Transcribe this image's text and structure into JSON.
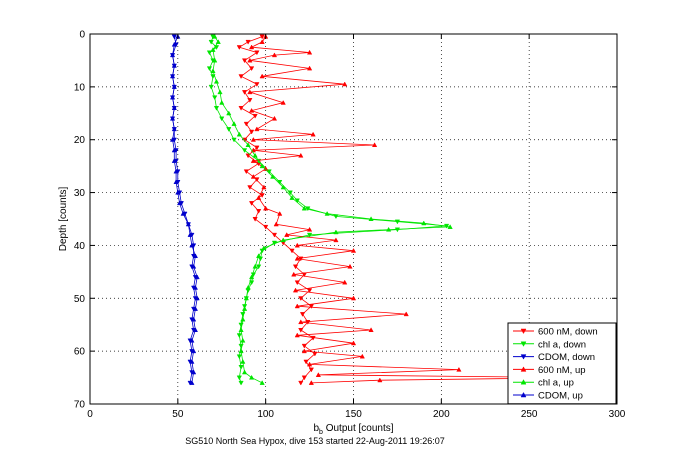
{
  "chart_data": {
    "type": "line",
    "title": "",
    "xlabel_prefix": "b",
    "xlabel_sub": "b",
    "xlabel_rest": " Output [counts]",
    "ylabel": "Depth [counts]",
    "caption": "SG510 North Sea Hypox, dive 153 started 22-Aug-2011 19:26:07",
    "xlim": [
      0,
      300
    ],
    "ylim": [
      0,
      70
    ],
    "y_reversed": true,
    "grid": "dotted",
    "legend_position": "bottom-right",
    "xticks": [
      "0",
      "50",
      "100",
      "150",
      "200",
      "250",
      "300"
    ],
    "yticks": [
      "0",
      "10",
      "20",
      "30",
      "40",
      "50",
      "60",
      "70"
    ],
    "series": [
      {
        "name": "600 nM, down",
        "color": "#ff0000",
        "marker": "triangle-down",
        "points": [
          [
            98,
            0.5
          ],
          [
            90,
            1.5
          ],
          [
            85,
            2.5
          ],
          [
            95,
            3.5
          ],
          [
            88,
            5
          ],
          [
            92,
            6.5
          ],
          [
            86,
            8
          ],
          [
            95,
            9.5
          ],
          [
            88,
            11
          ],
          [
            91,
            12.5
          ],
          [
            86,
            14
          ],
          [
            94,
            15.5
          ],
          [
            89,
            17
          ],
          [
            92,
            18.5
          ],
          [
            88,
            20
          ],
          [
            95,
            21.5
          ],
          [
            90,
            23
          ],
          [
            96,
            24.5
          ],
          [
            89,
            26
          ],
          [
            95,
            27.5
          ],
          [
            91,
            29
          ],
          [
            98,
            30.5
          ],
          [
            92,
            32
          ],
          [
            96,
            33.5
          ],
          [
            94,
            35
          ],
          [
            100,
            36.5
          ],
          [
            105,
            38
          ],
          [
            110,
            39.5
          ],
          [
            115,
            41
          ],
          [
            120,
            42.5
          ],
          [
            117,
            44
          ],
          [
            122,
            45.5
          ],
          [
            118,
            47
          ],
          [
            125,
            48.5
          ],
          [
            120,
            50
          ],
          [
            126,
            51.5
          ],
          [
            121,
            53
          ],
          [
            124,
            54.5
          ],
          [
            120,
            56
          ],
          [
            127,
            57.5
          ],
          [
            122,
            59
          ],
          [
            128,
            60.5
          ],
          [
            123,
            62
          ],
          [
            126,
            63.5
          ],
          [
            122,
            65
          ],
          [
            120,
            66
          ]
        ]
      },
      {
        "name": "chl a, down",
        "color": "#00e600",
        "marker": "triangle-down",
        "points": [
          [
            70,
            0.5
          ],
          [
            69,
            1.5
          ],
          [
            72,
            2.5
          ],
          [
            68,
            3.5
          ],
          [
            70,
            5
          ],
          [
            68,
            6.5
          ],
          [
            70,
            8
          ],
          [
            69,
            10
          ],
          [
            71,
            12
          ],
          [
            72,
            14
          ],
          [
            75,
            16
          ],
          [
            79,
            18
          ],
          [
            82,
            20
          ],
          [
            88,
            22
          ],
          [
            96,
            24
          ],
          [
            102,
            26
          ],
          [
            108,
            28
          ],
          [
            114,
            30
          ],
          [
            118,
            31.5
          ],
          [
            124,
            33
          ],
          [
            140,
            34.5
          ],
          [
            175,
            35.5
          ],
          [
            203,
            36.3
          ],
          [
            175,
            37
          ],
          [
            125,
            38
          ],
          [
            105,
            39.5
          ],
          [
            98,
            41
          ],
          [
            97,
            42.5
          ],
          [
            96,
            44
          ],
          [
            93,
            45.5
          ],
          [
            92,
            47
          ],
          [
            90,
            48.5
          ],
          [
            89,
            50
          ],
          [
            88,
            51.5
          ],
          [
            87,
            53
          ],
          [
            86,
            55
          ],
          [
            85,
            57
          ],
          [
            86,
            59
          ],
          [
            85,
            61
          ],
          [
            86,
            63
          ],
          [
            85,
            65
          ],
          [
            86,
            66
          ]
        ]
      },
      {
        "name": "CDOM, down",
        "color": "#0000cc",
        "marker": "triangle-down",
        "points": [
          [
            48,
            0.5
          ],
          [
            49,
            2
          ],
          [
            47,
            4
          ],
          [
            48,
            6
          ],
          [
            47,
            8
          ],
          [
            48,
            10
          ],
          [
            47,
            12
          ],
          [
            48,
            14
          ],
          [
            47,
            16
          ],
          [
            48,
            18
          ],
          [
            48,
            20
          ],
          [
            49,
            22
          ],
          [
            49,
            24
          ],
          [
            50,
            26
          ],
          [
            50,
            28
          ],
          [
            51,
            30
          ],
          [
            52,
            32
          ],
          [
            54,
            34
          ],
          [
            56,
            36
          ],
          [
            58,
            38
          ],
          [
            59,
            40
          ],
          [
            59,
            42
          ],
          [
            58,
            44
          ],
          [
            60,
            46
          ],
          [
            59,
            48
          ],
          [
            60,
            50
          ],
          [
            59,
            52
          ],
          [
            58,
            54
          ],
          [
            59,
            56
          ],
          [
            57,
            58
          ],
          [
            58,
            60
          ],
          [
            57,
            62
          ],
          [
            58,
            64
          ],
          [
            57,
            66
          ]
        ]
      },
      {
        "name": "600 nM, up",
        "color": "#ff0000",
        "marker": "triangle-up",
        "points": [
          [
            126,
            66
          ],
          [
            165,
            65.5
          ],
          [
            280,
            65
          ],
          [
            130,
            64.5
          ],
          [
            210,
            63.5
          ],
          [
            125,
            62.5
          ],
          [
            155,
            61
          ],
          [
            122,
            60
          ],
          [
            150,
            58.5
          ],
          [
            118,
            57
          ],
          [
            160,
            56
          ],
          [
            120,
            54.5
          ],
          [
            180,
            53
          ],
          [
            118,
            51.5
          ],
          [
            150,
            50
          ],
          [
            117,
            48.5
          ],
          [
            145,
            47
          ],
          [
            116,
            45.5
          ],
          [
            148,
            44
          ],
          [
            118,
            42.5
          ],
          [
            150,
            41
          ],
          [
            118,
            40
          ],
          [
            140,
            39
          ],
          [
            112,
            38
          ],
          [
            125,
            37
          ],
          [
            106,
            36
          ],
          [
            108,
            34
          ],
          [
            100,
            33
          ],
          [
            96,
            31
          ],
          [
            99,
            29
          ],
          [
            93,
            27
          ],
          [
            100,
            25.5
          ],
          [
            93,
            24
          ],
          [
            120,
            23
          ],
          [
            93,
            22
          ],
          [
            162,
            21
          ],
          [
            93,
            20
          ],
          [
            127,
            19
          ],
          [
            95,
            18
          ],
          [
            105,
            16
          ],
          [
            92,
            14.5
          ],
          [
            110,
            13
          ],
          [
            91,
            11
          ],
          [
            145,
            9.5
          ],
          [
            98,
            8
          ],
          [
            125,
            6.5
          ],
          [
            91,
            5
          ],
          [
            105,
            4
          ],
          [
            125,
            3.5
          ],
          [
            92,
            2.5
          ],
          [
            98,
            1.5
          ],
          [
            100,
            0.5
          ]
        ]
      },
      {
        "name": "chl a, up",
        "color": "#00e600",
        "marker": "triangle-up",
        "points": [
          [
            98,
            66
          ],
          [
            92,
            65
          ],
          [
            88,
            64
          ],
          [
            87,
            62
          ],
          [
            86,
            60
          ],
          [
            87,
            58
          ],
          [
            86,
            56
          ],
          [
            87,
            54
          ],
          [
            88,
            52
          ],
          [
            89,
            50
          ],
          [
            90,
            48
          ],
          [
            92,
            46
          ],
          [
            94,
            44
          ],
          [
            96,
            42
          ],
          [
            99,
            40.5
          ],
          [
            110,
            39
          ],
          [
            140,
            37.5
          ],
          [
            170,
            37
          ],
          [
            205,
            36.5
          ],
          [
            190,
            35.8
          ],
          [
            160,
            35
          ],
          [
            135,
            34
          ],
          [
            122,
            33
          ],
          [
            115,
            31
          ],
          [
            110,
            29
          ],
          [
            104,
            27
          ],
          [
            98,
            25
          ],
          [
            94,
            23
          ],
          [
            90,
            21
          ],
          [
            85,
            19
          ],
          [
            82,
            17
          ],
          [
            79,
            15
          ],
          [
            75,
            13
          ],
          [
            74,
            11
          ],
          [
            72,
            9
          ],
          [
            70,
            7
          ],
          [
            71,
            5
          ],
          [
            70,
            3
          ],
          [
            73,
            1.5
          ],
          [
            71,
            0.5
          ]
        ]
      },
      {
        "name": "CDOM, up",
        "color": "#0000cc",
        "marker": "triangle-up",
        "points": [
          [
            58,
            66
          ],
          [
            59,
            64
          ],
          [
            58,
            62
          ],
          [
            59,
            60
          ],
          [
            58,
            58
          ],
          [
            60,
            56
          ],
          [
            59,
            54
          ],
          [
            60,
            52
          ],
          [
            61,
            50
          ],
          [
            60,
            48
          ],
          [
            61,
            46
          ],
          [
            59,
            44
          ],
          [
            60,
            42
          ],
          [
            58,
            40
          ],
          [
            57,
            38
          ],
          [
            56,
            36
          ],
          [
            53,
            34
          ],
          [
            51,
            32
          ],
          [
            50,
            30
          ],
          [
            49,
            28
          ],
          [
            49,
            26
          ],
          [
            48,
            24
          ],
          [
            48,
            22
          ],
          [
            47,
            20
          ],
          [
            48,
            18
          ],
          [
            47,
            16
          ],
          [
            48,
            14
          ],
          [
            47,
            12
          ],
          [
            48,
            10
          ],
          [
            47,
            8
          ],
          [
            48,
            6
          ],
          [
            47,
            4
          ],
          [
            48,
            2
          ],
          [
            50,
            0.5
          ]
        ]
      }
    ]
  }
}
